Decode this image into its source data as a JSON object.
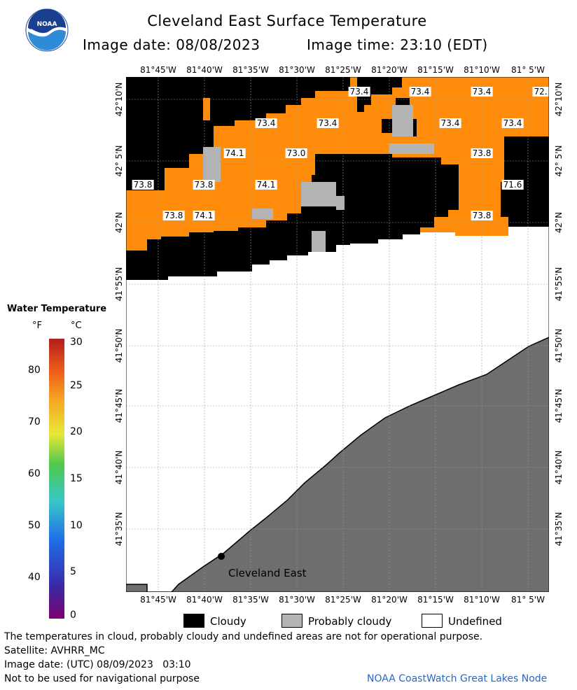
{
  "header": {
    "title": "Cleveland East Surface Temperature",
    "image_date_label": "Image date: 08/08/2023",
    "image_time_label": "Image time: 23:10 (EDT)"
  },
  "logo": {
    "text": "NOAA"
  },
  "map": {
    "lon_labels": [
      "81°45'W",
      "81°40'W",
      "81°35'W",
      "81°30'W",
      "81°25'W",
      "81°20'W",
      "81°15'W",
      "81°10'W",
      "81° 5'W"
    ],
    "lat_labels": [
      "42°10'N",
      "42° 5'N",
      "42°N",
      "41°55'N",
      "41°50'N",
      "41°45'N",
      "41°40'N",
      "41°35'N"
    ],
    "temperature_labels": [
      "73.4",
      "73.4",
      "73.4",
      "72.",
      "73.4",
      "73.4",
      "73.4",
      "73.4",
      "74.1",
      "73.0",
      "73.8",
      "73.8",
      "73.8",
      "74.1",
      "71.6",
      "74.1",
      "73.8",
      "73.8"
    ],
    "city_label": "Cleveland East",
    "colors": {
      "water_warm": "#FF8C0A",
      "cloudy": "#000000",
      "probably_cloudy": "#B4B4B4",
      "land": "#6E6E6E",
      "undefined": "#FFFFFF"
    }
  },
  "legend": {
    "title": "Water Temperature",
    "unit_f": "°F",
    "unit_c": "°C",
    "f_ticks": [
      "80",
      "70",
      "60",
      "50",
      "40"
    ],
    "c_ticks": [
      "30",
      "25",
      "20",
      "15",
      "10",
      "5",
      "0"
    ]
  },
  "key": {
    "cloudy": "Cloudy",
    "probably_cloudy": "Probably cloudy",
    "undefined": "Undefined"
  },
  "footer": {
    "disclaimer": "The temperatures in cloud, probably cloudy and undefined areas are not for operational purpose.",
    "satellite": "Satellite: AVHRR_MC",
    "utc_date": "Image date: (UTC) 08/09/2023   03:10",
    "nav_warning": "Not to be used for navigational purpose",
    "credit": "NOAA CoastWatch Great Lakes Node"
  }
}
